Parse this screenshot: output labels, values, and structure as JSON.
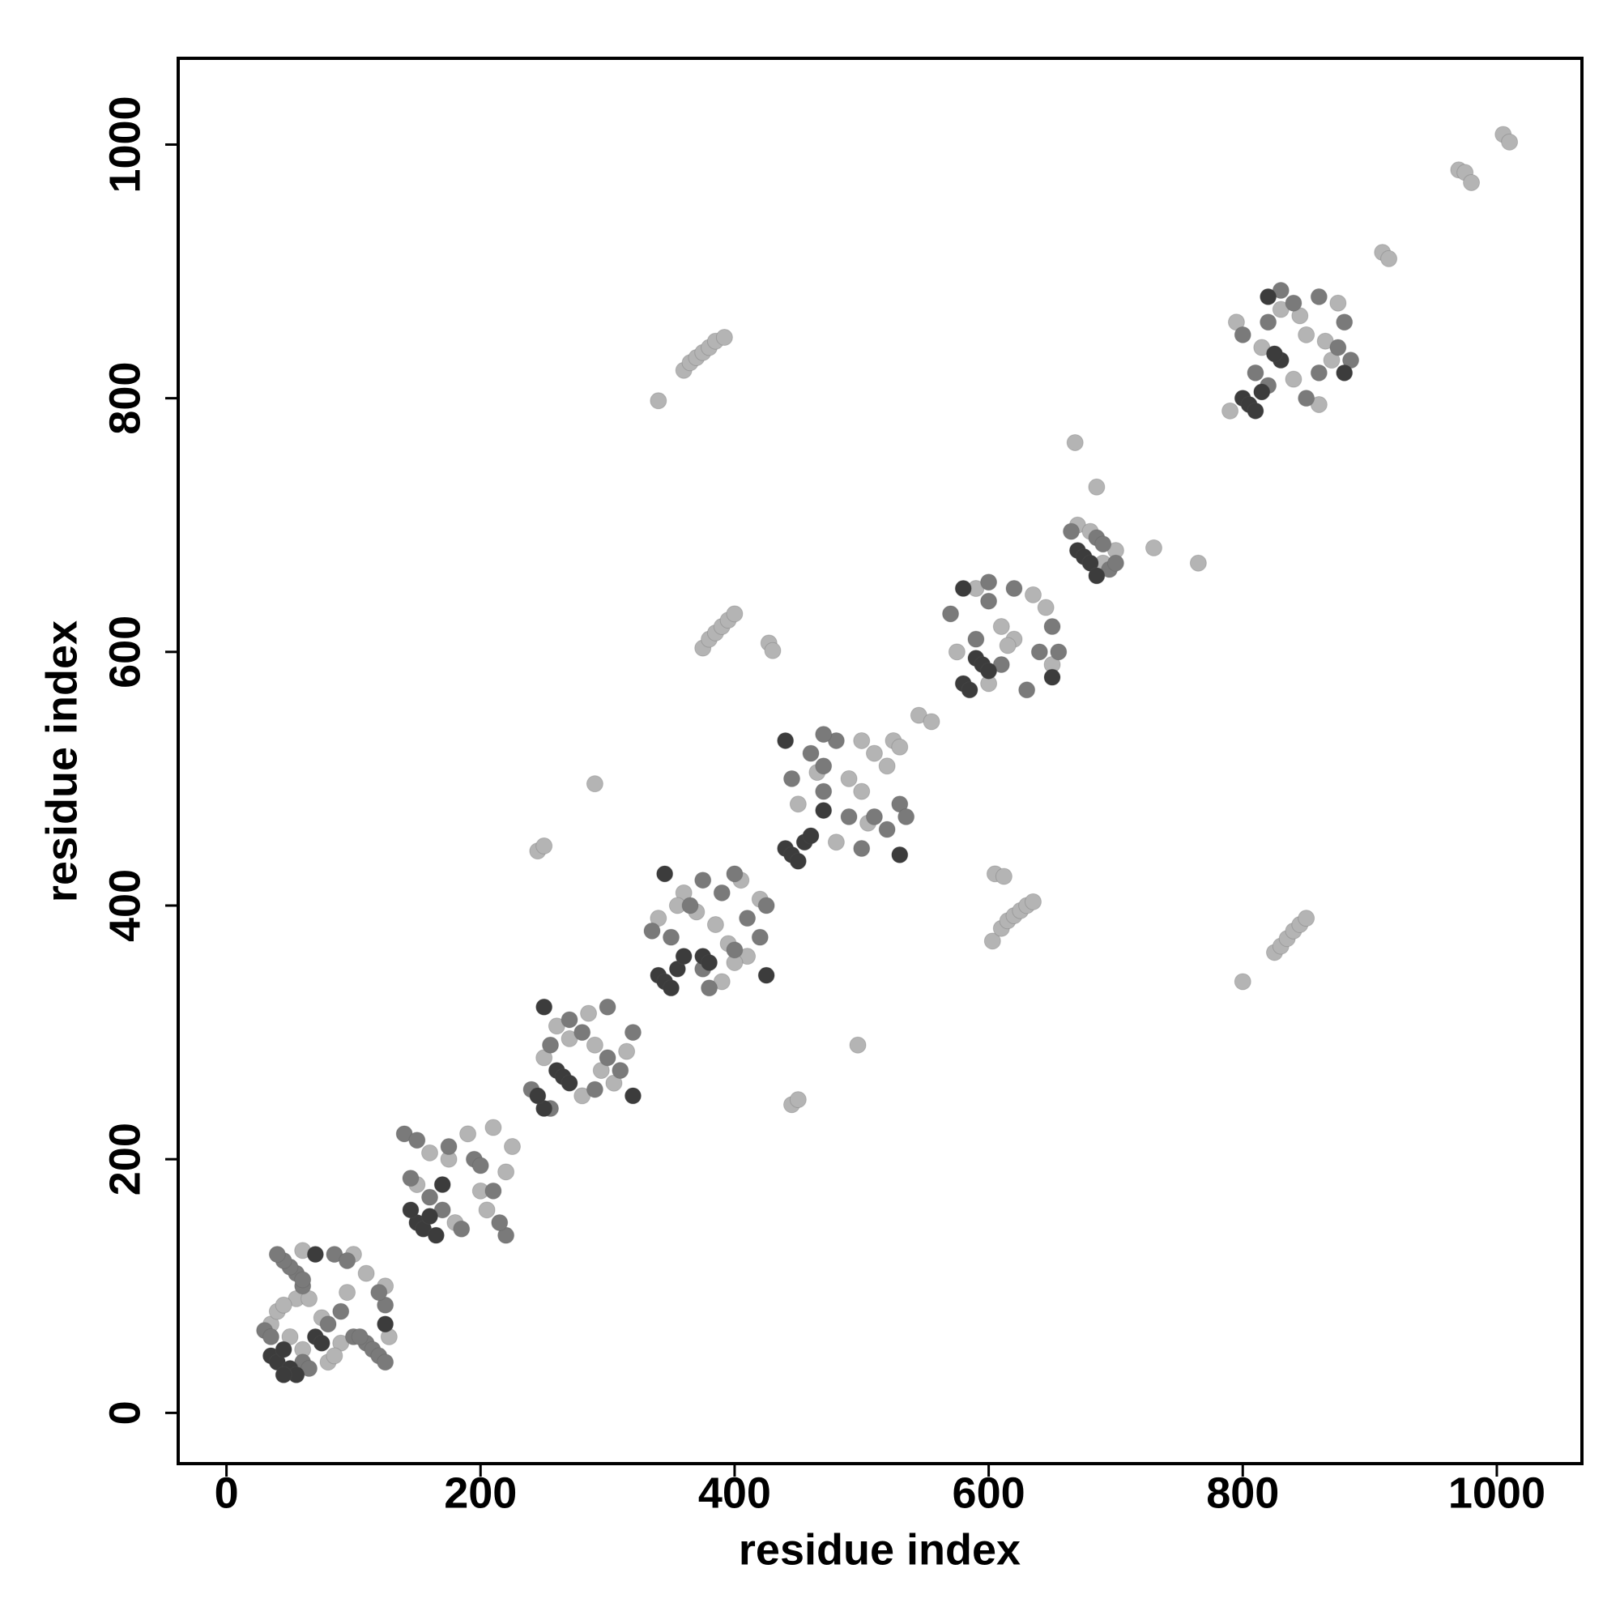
{
  "chart_data": {
    "type": "scatter",
    "xlabel": "residue index",
    "ylabel": "residue index",
    "xlim": [
      -38,
      1067
    ],
    "ylim": [
      -40,
      1068
    ],
    "xticks": [
      0,
      200,
      400,
      600,
      800,
      1000
    ],
    "yticks": [
      0,
      200,
      400,
      600,
      800,
      1000
    ],
    "grid": false,
    "series": [
      {
        "color": "#b4b4b4",
        "x": [
          35,
          40,
          55,
          65,
          90,
          80,
          100,
          125,
          110,
          75,
          50,
          60,
          95,
          85,
          45,
          128,
          60,
          150,
          180,
          175,
          200,
          190,
          220,
          205,
          160,
          225,
          210,
          250,
          280,
          270,
          295,
          285,
          315,
          305,
          260,
          290,
          340,
          390,
          360,
          410,
          385,
          395,
          370,
          405,
          420,
          355,
          400,
          450,
          480,
          490,
          500,
          510,
          520,
          525,
          530,
          465,
          505,
          500,
          575,
          600,
          610,
          620,
          635,
          645,
          590,
          650,
          615,
          670,
          700,
          690,
          680,
          795,
          860,
          815,
          840,
          830,
          870,
          850,
          845,
          865,
          790,
          875,
          340,
          360,
          365,
          370,
          375,
          380,
          385,
          392,
          375,
          380,
          385,
          390,
          395,
          400,
          427,
          430,
          290,
          245,
          250,
          603,
          610,
          615,
          620,
          625,
          630,
          635,
          605,
          612,
          445,
          450,
          497,
          800,
          825,
          830,
          835,
          840,
          845,
          850,
          668,
          685,
          730,
          765,
          545,
          555,
          910,
          915,
          970,
          975,
          980,
          1005,
          1010
        ],
        "y": [
          70,
          80,
          90,
          90,
          55,
          40,
          125,
          100,
          110,
          75,
          60,
          50,
          95,
          45,
          85,
          60,
          128,
          180,
          150,
          200,
          175,
          220,
          190,
          160,
          205,
          210,
          225,
          280,
          250,
          295,
          270,
          315,
          285,
          260,
          305,
          290,
          390,
          340,
          410,
          360,
          385,
          370,
          395,
          420,
          405,
          400,
          355,
          480,
          450,
          500,
          490,
          520,
          510,
          530,
          525,
          505,
          465,
          530,
          600,
          575,
          620,
          610,
          645,
          635,
          650,
          590,
          605,
          700,
          680,
          670,
          695,
          860,
          795,
          840,
          815,
          870,
          830,
          850,
          865,
          845,
          790,
          875,
          798,
          822,
          828,
          832,
          836,
          840,
          845,
          848,
          603,
          610,
          615,
          620,
          625,
          630,
          607,
          601,
          496,
          443,
          447,
          372,
          382,
          388,
          392,
          396,
          400,
          403,
          425,
          423,
          243,
          247,
          290,
          340,
          363,
          368,
          374,
          380,
          385,
          390,
          765,
          730,
          682,
          670,
          550,
          545,
          915,
          910,
          980,
          978,
          970,
          1008,
          1002
        ]
      },
      {
        "color": "#7a7a7a",
        "x": [
          30,
          35,
          60,
          65,
          80,
          90,
          100,
          60,
          110,
          55,
          115,
          50,
          120,
          45,
          125,
          40,
          85,
          125,
          95,
          120,
          105,
          60,
          140,
          220,
          150,
          215,
          175,
          210,
          195,
          200,
          160,
          170,
          185,
          145,
          240,
          255,
          280,
          300,
          310,
          270,
          290,
          255,
          300,
          320,
          335,
          380,
          365,
          400,
          390,
          410,
          420,
          375,
          425,
          400,
          350,
          375,
          445,
          500,
          470,
          510,
          480,
          530,
          520,
          460,
          490,
          470,
          535,
          470,
          570,
          630,
          600,
          640,
          620,
          650,
          610,
          590,
          655,
          600,
          665,
          695,
          685,
          690,
          700,
          800,
          850,
          820,
          860,
          840,
          875,
          880,
          860,
          885,
          830,
          810,
          820
        ],
        "y": [
          65,
          60,
          40,
          35,
          70,
          80,
          60,
          100,
          55,
          110,
          50,
          115,
          45,
          120,
          40,
          125,
          125,
          85,
          120,
          95,
          60,
          105,
          220,
          140,
          215,
          150,
          210,
          175,
          200,
          195,
          170,
          160,
          145,
          185,
          255,
          240,
          300,
          280,
          270,
          310,
          255,
          290,
          320,
          300,
          380,
          335,
          400,
          365,
          410,
          390,
          375,
          420,
          400,
          425,
          375,
          350,
          500,
          445,
          510,
          470,
          530,
          480,
          460,
          520,
          470,
          490,
          470,
          535,
          630,
          570,
          640,
          600,
          650,
          620,
          590,
          610,
          600,
          655,
          695,
          665,
          690,
          685,
          670,
          850,
          800,
          860,
          820,
          875,
          840,
          860,
          880,
          830,
          885,
          820,
          810
        ]
      },
      {
        "color": "#3c3c3c",
        "x": [
          35,
          40,
          45,
          50,
          55,
          45,
          70,
          75,
          150,
          155,
          160,
          145,
          165,
          170,
          260,
          265,
          270,
          250,
          245,
          340,
          345,
          350,
          355,
          360,
          375,
          380,
          440,
          445,
          450,
          455,
          460,
          470,
          590,
          595,
          600,
          580,
          585,
          670,
          675,
          680,
          685,
          800,
          805,
          810,
          815,
          830,
          825,
          820,
          880,
          70,
          125,
          250,
          320,
          345,
          425,
          440,
          530,
          580,
          650
        ],
        "y": [
          45,
          40,
          50,
          35,
          30,
          30,
          60,
          55,
          150,
          145,
          155,
          160,
          140,
          180,
          270,
          265,
          260,
          240,
          250,
          345,
          340,
          335,
          350,
          360,
          360,
          355,
          445,
          440,
          435,
          450,
          455,
          475,
          595,
          590,
          585,
          575,
          570,
          680,
          675,
          670,
          660,
          800,
          795,
          790,
          805,
          830,
          835,
          880,
          820,
          125,
          70,
          320,
          250,
          425,
          345,
          530,
          440,
          650,
          580
        ]
      }
    ]
  }
}
